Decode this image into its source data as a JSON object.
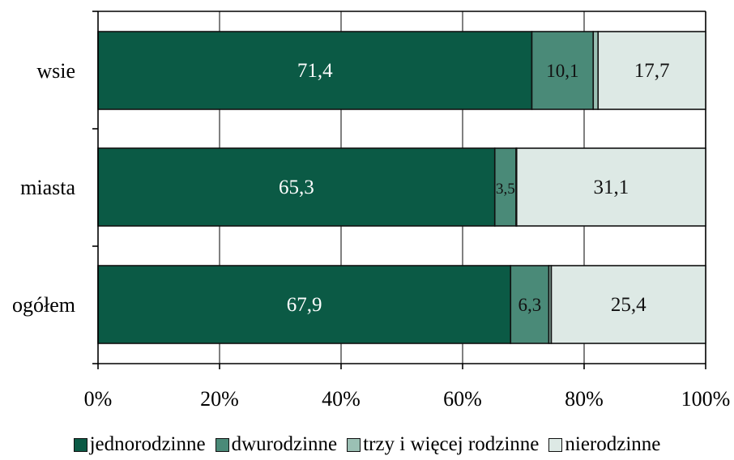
{
  "chart_data": {
    "type": "bar",
    "orientation": "horizontal",
    "stacked": true,
    "percent_stacked": true,
    "categories": [
      "ogółem",
      "miasta",
      "wsie"
    ],
    "series": [
      {
        "name": "jednorodzinne",
        "color": "#0b5a45",
        "values": [
          67.9,
          65.3,
          71.4
        ],
        "labels": [
          "67,9",
          "65,3",
          "71,4"
        ]
      },
      {
        "name": "dwurodzinne",
        "color": "#4a8a78",
        "values": [
          6.3,
          3.5,
          10.1
        ],
        "labels": [
          "6,3",
          "3,5",
          "10,1"
        ]
      },
      {
        "name": "trzy i więcej rodzinne",
        "color": "#9bc0b4",
        "values": [
          0.4,
          0.1,
          0.8
        ],
        "labels": [
          "",
          "",
          ""
        ]
      },
      {
        "name": "nierodzinne",
        "color": "#dde9e5",
        "values": [
          25.4,
          31.1,
          17.7
        ],
        "labels": [
          "25,4",
          "31,1",
          "17,7"
        ]
      }
    ],
    "xlim": [
      0,
      100
    ],
    "x_ticks": [
      "0%",
      "20%",
      "40%",
      "60%",
      "80%",
      "100%"
    ],
    "grid": true,
    "legend_position": "bottom",
    "title": "",
    "xlabel": "",
    "ylabel": ""
  }
}
